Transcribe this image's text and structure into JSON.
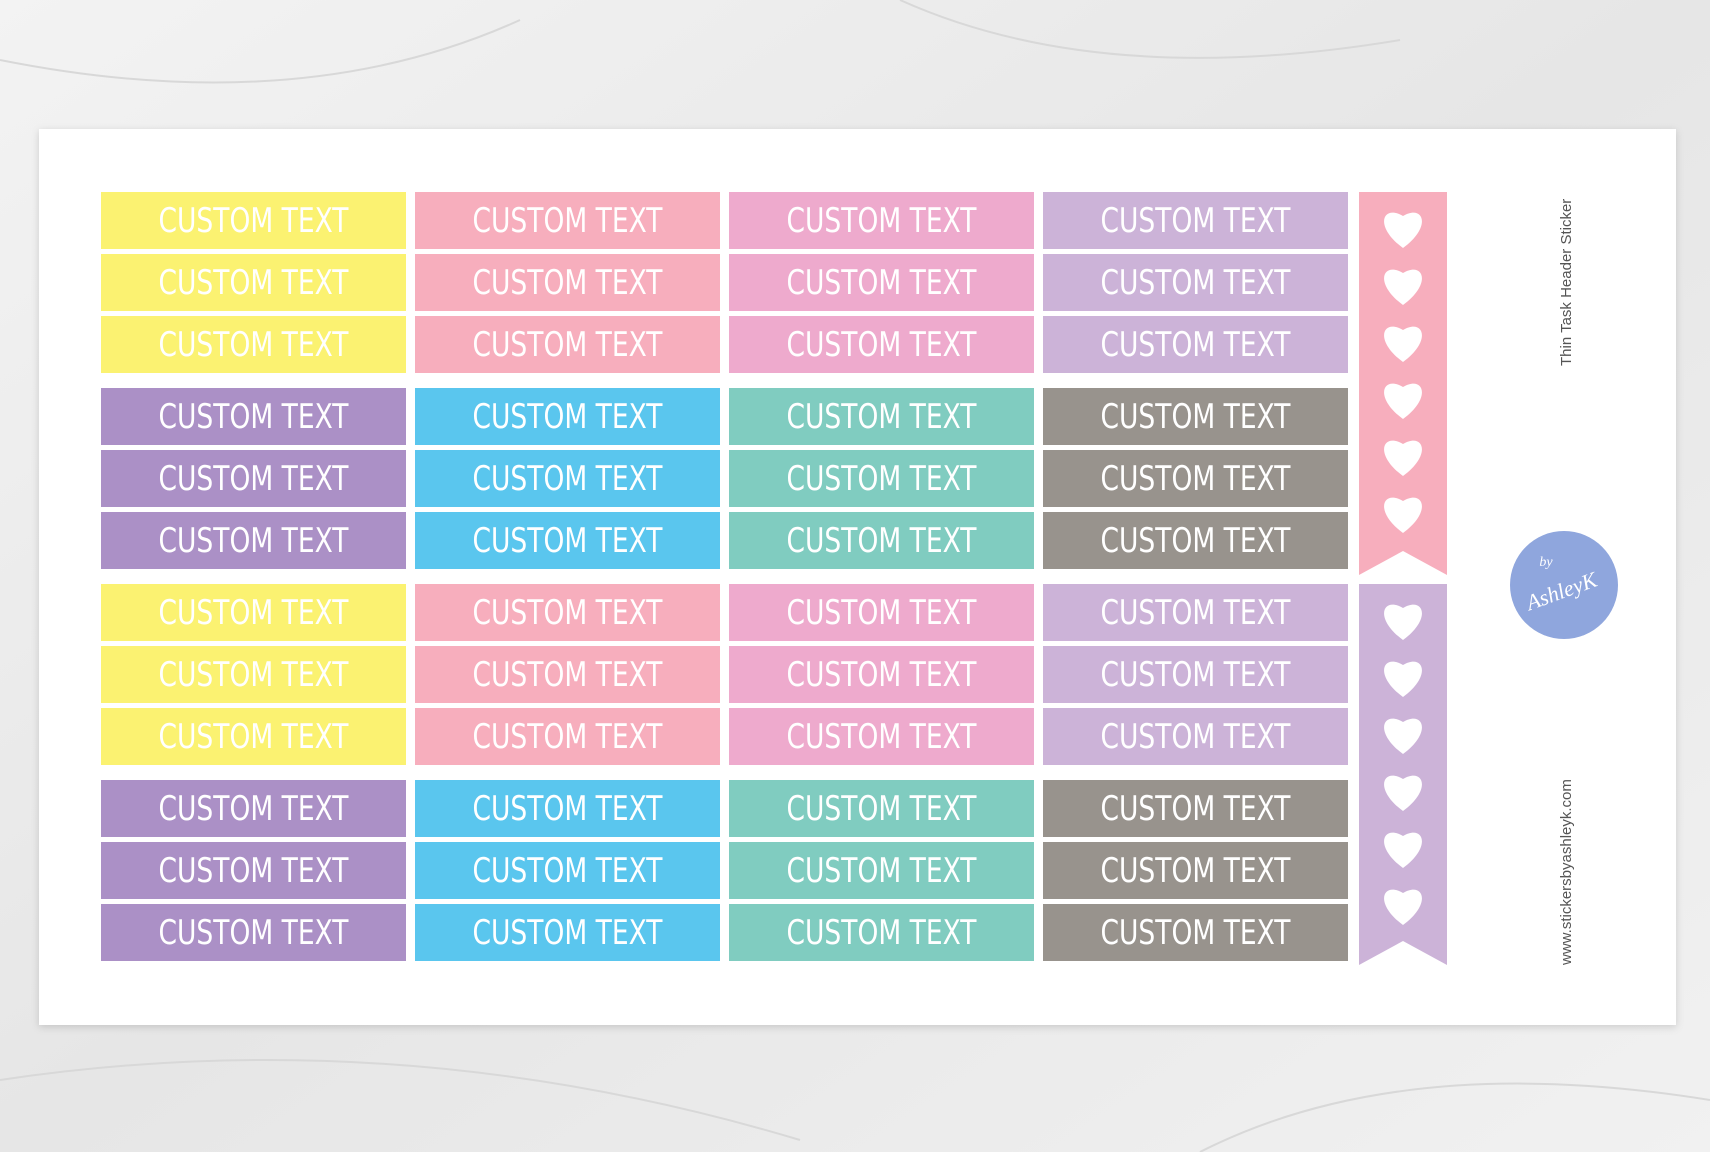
{
  "sheet": {
    "blocks": [
      {
        "columns": [
          {
            "color": "#fbf271",
            "labels": [
              "CUSTOM TEXT",
              "CUSTOM TEXT",
              "CUSTOM TEXT"
            ]
          },
          {
            "color": "#f7aebd",
            "labels": [
              "CUSTOM TEXT",
              "CUSTOM TEXT",
              "CUSTOM TEXT"
            ]
          },
          {
            "color": "#eeaacd",
            "labels": [
              "CUSTOM TEXT",
              "CUSTOM TEXT",
              "CUSTOM TEXT"
            ]
          },
          {
            "color": "#ccb3d8",
            "labels": [
              "CUSTOM TEXT",
              "CUSTOM TEXT",
              "CUSTOM TEXT"
            ]
          }
        ]
      },
      {
        "columns": [
          {
            "color": "#ab90c6",
            "labels": [
              "CUSTOM TEXT",
              "CUSTOM TEXT",
              "CUSTOM TEXT"
            ]
          },
          {
            "color": "#5ac6ee",
            "labels": [
              "CUSTOM TEXT",
              "CUSTOM TEXT",
              "CUSTOM TEXT"
            ]
          },
          {
            "color": "#80ccc0",
            "labels": [
              "CUSTOM TEXT",
              "CUSTOM TEXT",
              "CUSTOM TEXT"
            ]
          },
          {
            "color": "#98938d",
            "labels": [
              "CUSTOM TEXT",
              "CUSTOM TEXT",
              "CUSTOM TEXT"
            ]
          }
        ]
      },
      {
        "columns": [
          {
            "color": "#fbf271",
            "labels": [
              "CUSTOM TEXT",
              "CUSTOM TEXT",
              "CUSTOM TEXT"
            ]
          },
          {
            "color": "#f7aebd",
            "labels": [
              "CUSTOM TEXT",
              "CUSTOM TEXT",
              "CUSTOM TEXT"
            ]
          },
          {
            "color": "#eeaacd",
            "labels": [
              "CUSTOM TEXT",
              "CUSTOM TEXT",
              "CUSTOM TEXT"
            ]
          },
          {
            "color": "#ccb3d8",
            "labels": [
              "CUSTOM TEXT",
              "CUSTOM TEXT",
              "CUSTOM TEXT"
            ]
          }
        ]
      },
      {
        "columns": [
          {
            "color": "#ab90c6",
            "labels": [
              "CUSTOM TEXT",
              "CUSTOM TEXT",
              "CUSTOM TEXT"
            ]
          },
          {
            "color": "#5ac6ee",
            "labels": [
              "CUSTOM TEXT",
              "CUSTOM TEXT",
              "CUSTOM TEXT"
            ]
          },
          {
            "color": "#80ccc0",
            "labels": [
              "CUSTOM TEXT",
              "CUSTOM TEXT",
              "CUSTOM TEXT"
            ]
          },
          {
            "color": "#98938d",
            "labels": [
              "CUSTOM TEXT",
              "CUSTOM TEXT",
              "CUSTOM TEXT"
            ]
          }
        ]
      }
    ],
    "flags": [
      {
        "color": "#f7aebd"
      },
      {
        "color": "#ccb3d8"
      }
    ],
    "side_title": "Thin Task Header Sticker",
    "logo": {
      "line1": "by",
      "line2": "AshleyK"
    },
    "website": "www.stickersbyashleyk.com"
  }
}
